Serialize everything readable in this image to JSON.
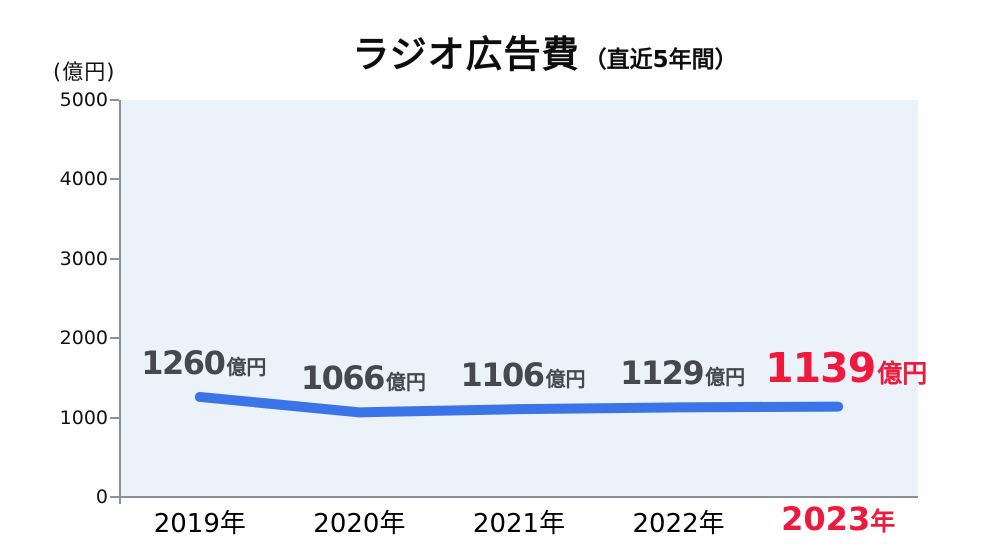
{
  "page": {
    "background": "#ffffff"
  },
  "chart_data": {
    "type": "line",
    "title": "ラジオ広告費",
    "subtitle": "（直近5年間）",
    "y_unit_label": "(億円)",
    "unit_suffix": "億円",
    "categories": [
      "2019年",
      "2020年",
      "2021年",
      "2022年",
      "2023年"
    ],
    "values": [
      1260,
      1066,
      1106,
      1129,
      1139
    ],
    "data_labels": [
      "1260億円",
      "1066億円",
      "1106億円",
      "1129億円",
      "1139億円"
    ],
    "ylim": [
      0,
      5000
    ],
    "yticks": [
      0,
      1000,
      2000,
      3000,
      4000,
      5000
    ],
    "grid": false,
    "legend": false,
    "highlight_index": 4,
    "colors": {
      "line": "#3b74e6",
      "plot_background": "#ecf2fa",
      "label_text": "#45484e",
      "highlight": "#ee1a3d",
      "axis": "#8a8f98",
      "title_text": "#0d0d0d"
    }
  }
}
